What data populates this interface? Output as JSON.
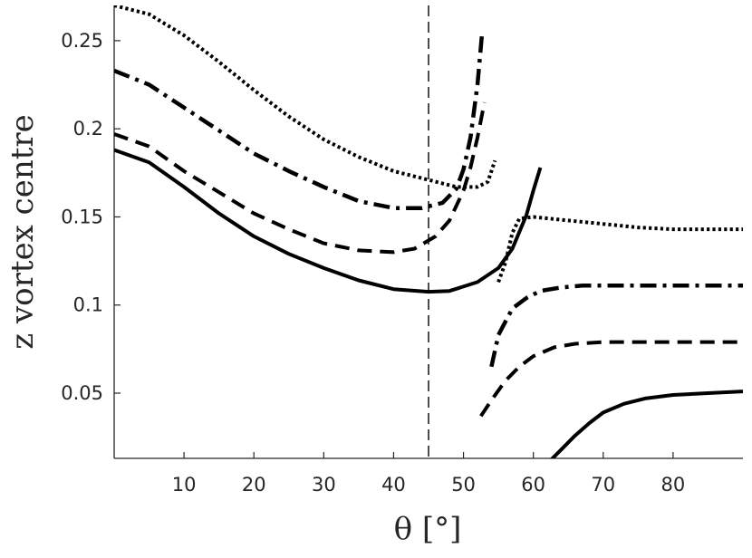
{
  "chart_data": {
    "type": "line",
    "title": "",
    "xlabel": "θ [°]",
    "ylabel": "z vortex centre",
    "xlim": [
      0,
      90
    ],
    "ylim": [
      0.013,
      0.27
    ],
    "xticks": [
      10,
      20,
      30,
      40,
      50,
      60,
      70,
      80
    ],
    "yticks": [
      0.05,
      0.1,
      0.15,
      0.2,
      0.25
    ],
    "ytick_labels": [
      "0.05",
      "0.1",
      "0.15",
      "0.2",
      "0.25"
    ],
    "reference_line": {
      "x": 45,
      "style": "dashed-thin"
    },
    "grid": false,
    "legend": "none",
    "line_color": "#000000",
    "series": [
      {
        "style": "solid",
        "segments": [
          [
            [
              0,
              0.188
            ],
            [
              5,
              0.181
            ],
            [
              10,
              0.167
            ],
            [
              15,
              0.152
            ],
            [
              20,
              0.139
            ],
            [
              25,
              0.129
            ],
            [
              30,
              0.121
            ],
            [
              35,
              0.114
            ],
            [
              40,
              0.109
            ],
            [
              45,
              0.1075
            ],
            [
              48,
              0.108
            ],
            [
              52,
              0.113
            ],
            [
              55,
              0.121
            ],
            [
              57,
              0.132
            ],
            [
              59,
              0.151
            ],
            [
              60,
              0.165
            ],
            [
              61,
              0.178
            ]
          ],
          [
            [
              62.5,
              0.012
            ],
            [
              64,
              0.018
            ],
            [
              66,
              0.026
            ],
            [
              68,
              0.033
            ],
            [
              70,
              0.039
            ],
            [
              73,
              0.044
            ],
            [
              76,
              0.047
            ],
            [
              80,
              0.049
            ],
            [
              85,
              0.05
            ],
            [
              90,
              0.051
            ]
          ]
        ]
      },
      {
        "style": "dashed",
        "segments": [
          [
            [
              0,
              0.197
            ],
            [
              5,
              0.19
            ],
            [
              10,
              0.176
            ],
            [
              15,
              0.164
            ],
            [
              20,
              0.152
            ],
            [
              25,
              0.143
            ],
            [
              30,
              0.135
            ],
            [
              35,
              0.131
            ],
            [
              40,
              0.13
            ],
            [
              43,
              0.132
            ],
            [
              46,
              0.139
            ],
            [
              48,
              0.148
            ],
            [
              50,
              0.165
            ],
            [
              51,
              0.178
            ],
            [
              52,
              0.195
            ],
            [
              53,
              0.215
            ]
          ],
          [
            [
              52.5,
              0.037
            ],
            [
              54,
              0.046
            ],
            [
              56,
              0.057
            ],
            [
              58,
              0.065
            ],
            [
              60,
              0.071
            ],
            [
              63,
              0.076
            ],
            [
              66,
              0.078
            ],
            [
              70,
              0.079
            ],
            [
              80,
              0.079
            ],
            [
              90,
              0.079
            ]
          ]
        ]
      },
      {
        "style": "dashdot",
        "segments": [
          [
            [
              0,
              0.233
            ],
            [
              5,
              0.225
            ],
            [
              10,
              0.212
            ],
            [
              15,
              0.199
            ],
            [
              20,
              0.186
            ],
            [
              25,
              0.176
            ],
            [
              30,
              0.167
            ],
            [
              35,
              0.159
            ],
            [
              40,
              0.155
            ],
            [
              44,
              0.155
            ],
            [
              47,
              0.158
            ],
            [
              49,
              0.166
            ],
            [
              50,
              0.177
            ],
            [
              51,
              0.195
            ],
            [
              52,
              0.225
            ],
            [
              52.7,
              0.256
            ]
          ],
          [
            [
              54,
              0.065
            ],
            [
              55,
              0.083
            ],
            [
              57,
              0.098
            ],
            [
              59,
              0.104
            ],
            [
              61,
              0.108
            ],
            [
              64,
              0.11
            ],
            [
              67,
              0.111
            ],
            [
              75,
              0.111
            ],
            [
              90,
              0.111
            ]
          ]
        ]
      },
      {
        "style": "dotted",
        "segments": [
          [
            [
              0,
              0.27
            ],
            [
              5,
              0.265
            ],
            [
              10,
              0.253
            ],
            [
              15,
              0.238
            ],
            [
              20,
              0.222
            ],
            [
              25,
              0.207
            ],
            [
              30,
              0.194
            ],
            [
              35,
              0.184
            ],
            [
              40,
              0.176
            ],
            [
              45,
              0.171
            ],
            [
              49,
              0.167
            ],
            [
              52,
              0.167
            ],
            [
              53.5,
              0.17
            ],
            [
              54.5,
              0.182
            ]
          ],
          [
            [
              55,
              0.113
            ],
            [
              56,
              0.124
            ],
            [
              57,
              0.141
            ],
            [
              58,
              0.149
            ],
            [
              60,
              0.15
            ],
            [
              65,
              0.148
            ],
            [
              70,
              0.146
            ],
            [
              75,
              0.144
            ],
            [
              80,
              0.143
            ],
            [
              90,
              0.143
            ]
          ]
        ]
      }
    ]
  }
}
